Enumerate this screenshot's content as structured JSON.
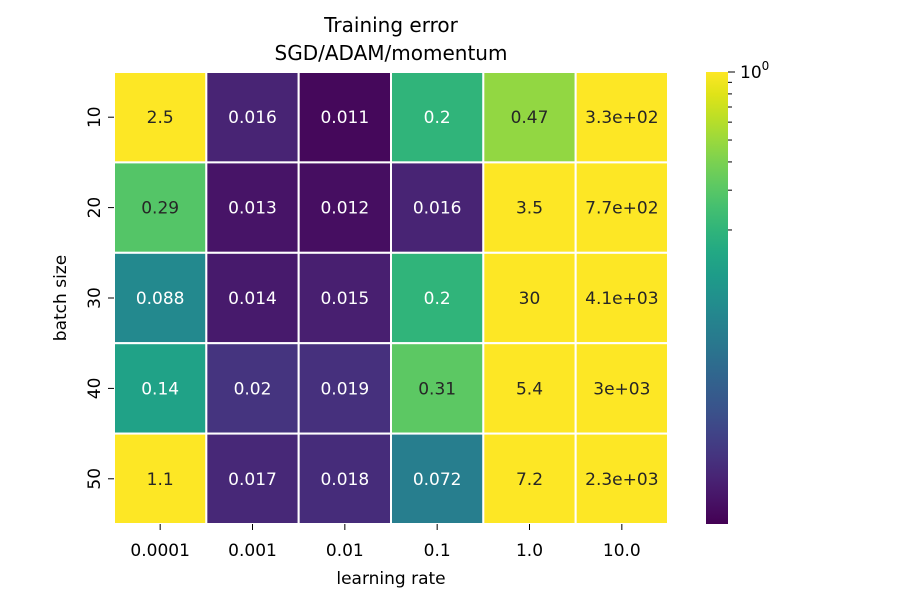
{
  "chart_data": {
    "type": "heatmap",
    "title": "Training error",
    "subtitle": "SGD/ADAM/momentum",
    "xlabel": "learning rate",
    "ylabel": "batch size",
    "x_categories": [
      "0.0001",
      "0.001",
      "0.01",
      "0.1",
      "1.0",
      "10.0"
    ],
    "y_categories": [
      "10",
      "20",
      "30",
      "40",
      "50"
    ],
    "values": [
      [
        2.5,
        0.016,
        0.011,
        0.2,
        0.47,
        330
      ],
      [
        0.29,
        0.013,
        0.012,
        0.016,
        3.5,
        770
      ],
      [
        0.088,
        0.014,
        0.015,
        0.2,
        30,
        4100
      ],
      [
        0.14,
        0.02,
        0.019,
        0.31,
        5.4,
        3000
      ],
      [
        1.1,
        0.017,
        0.018,
        0.072,
        7.2,
        2300
      ]
    ],
    "value_labels": [
      [
        "2.5",
        "0.016",
        "0.011",
        "0.2",
        "0.47",
        "3.3e+02"
      ],
      [
        "0.29",
        "0.013",
        "0.012",
        "0.016",
        "3.5",
        "7.7e+02"
      ],
      [
        "0.088",
        "0.014",
        "0.015",
        "0.2",
        "30",
        "4.1e+03"
      ],
      [
        "0.14",
        "0.02",
        "0.019",
        "0.31",
        "5.4",
        "3e+03"
      ],
      [
        "1.1",
        "0.017",
        "0.018",
        "0.072",
        "7.2",
        "2.3e+03"
      ]
    ],
    "color_scale": {
      "colormap": "viridis",
      "scale": "log",
      "vmin": 0.01,
      "vmax": 1.0,
      "top_label_base": "10",
      "top_label_exp": "0",
      "minor_ticks": [
        0.9,
        0.8,
        0.7,
        0.6,
        0.5,
        0.4,
        0.3,
        0.2
      ]
    },
    "cell_separator_color": "#ffffff",
    "label_color_light": "#ffffff",
    "label_color_dark": "#262626",
    "grid": false,
    "legend": "colorbar-right"
  }
}
